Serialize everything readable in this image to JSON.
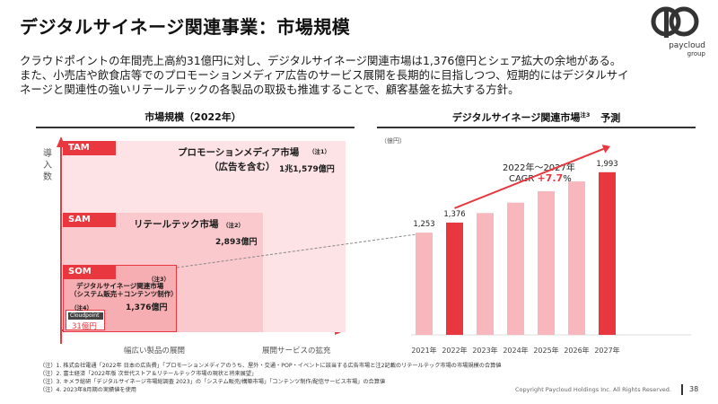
{
  "header": {
    "title": "デジタルサイネージ関連事業：市場規模",
    "lead_lines": [
      "クラウドポイントの年間売上高約31億円に対し、デジタルサイネージ関連市場は1,376億円とシェア拡大の余地がある。",
      "また、小売店や飲食店等でのプロモーションメディア広告のサービス展開を長期的に目指しつつ、短期的にはデジタルサイ",
      "ネージと関連性の強いリテールテックの各製品の取扱も推進することで、顧客基盤を拡大する方針。"
    ]
  },
  "logo": {
    "text_top": "paycloud",
    "text_bottom": "group"
  },
  "left_panel": {
    "heading": "市場規模（2022年）",
    "y_axis_label": "導入数",
    "tam": {
      "tag": "TAM",
      "title_line1": "プロモーションメディア市場",
      "title_line2": "（広告を含む）",
      "note": "（注1）",
      "value": "1兆1,579億円"
    },
    "sam": {
      "tag": "SAM",
      "title": "リテールテック市場",
      "note": "（注2）",
      "value": "2,893億円"
    },
    "som": {
      "tag": "SOM",
      "note": "（注3）",
      "title_line1": "デジタルサイネージ",
      "title_line2": "関連市場",
      "title_line3": "（システム販売＋コンテンツ制作）",
      "value": "1,376億円"
    },
    "cloudpoint": {
      "note": "（注4）",
      "label": "Cloudpoint",
      "value": "31億円"
    },
    "x_axis_left": "幅広い製品の展開",
    "x_axis_right": "展開サービスの拡充"
  },
  "right_panel": {
    "heading": "デジタルサイネージ関連市場",
    "heading_note": "注3",
    "heading_suffix": "予測",
    "unit": "（億円）",
    "cagr_period": "2022年〜2027年",
    "cagr_label": "CAGR",
    "cagr_value": "+7.7",
    "cagr_pct": "%"
  },
  "chart_data": {
    "type": "bar",
    "title": "デジタルサイネージ関連市場 予測",
    "ylabel": "（億円）",
    "categories": [
      "2021年",
      "2022年",
      "2023年",
      "2024年",
      "2025年",
      "2026年",
      "2027年"
    ],
    "values": [
      1253,
      1376,
      1493,
      1620,
      1760,
      1880,
      1993
    ],
    "data_labels": [
      "1,253",
      "1,376",
      "",
      "",
      "",
      "",
      "1,993"
    ],
    "highlight": [
      "2022年",
      "2027年"
    ],
    "colors": {
      "normal": "#f7b7bc",
      "highlight": "#e8373f"
    },
    "ylim": [
      0,
      2200
    ]
  },
  "notes": [
    "（注）1. 株式会社電通「2022年 日本の広告費」「プロモーションメディアのうち、屋外・交通・POP・イベントに該当する広告市場と注2記載のリテールテック市場の市場規模の合算値",
    "（注）2. 富士経済「2022年版 次世代ストア＆リテールテック市場の現状と将来展望」",
    "（注）3. キメラ総研「デジタルサイネージ市場総調査 2023」の「システム販売/構築市場」「コンテンツ制作/配信サービス市場」の合算値",
    "（注）4. 2023年8月期の実績値を使用"
  ],
  "footer": {
    "copyright": "Copyright Paycloud Holdings Inc. All Rights Reserved.",
    "page_number": "38"
  },
  "colors": {
    "accent": "#e8373f",
    "pink_light": "#fde3e5",
    "pink_mid": "#f8c4c8"
  }
}
